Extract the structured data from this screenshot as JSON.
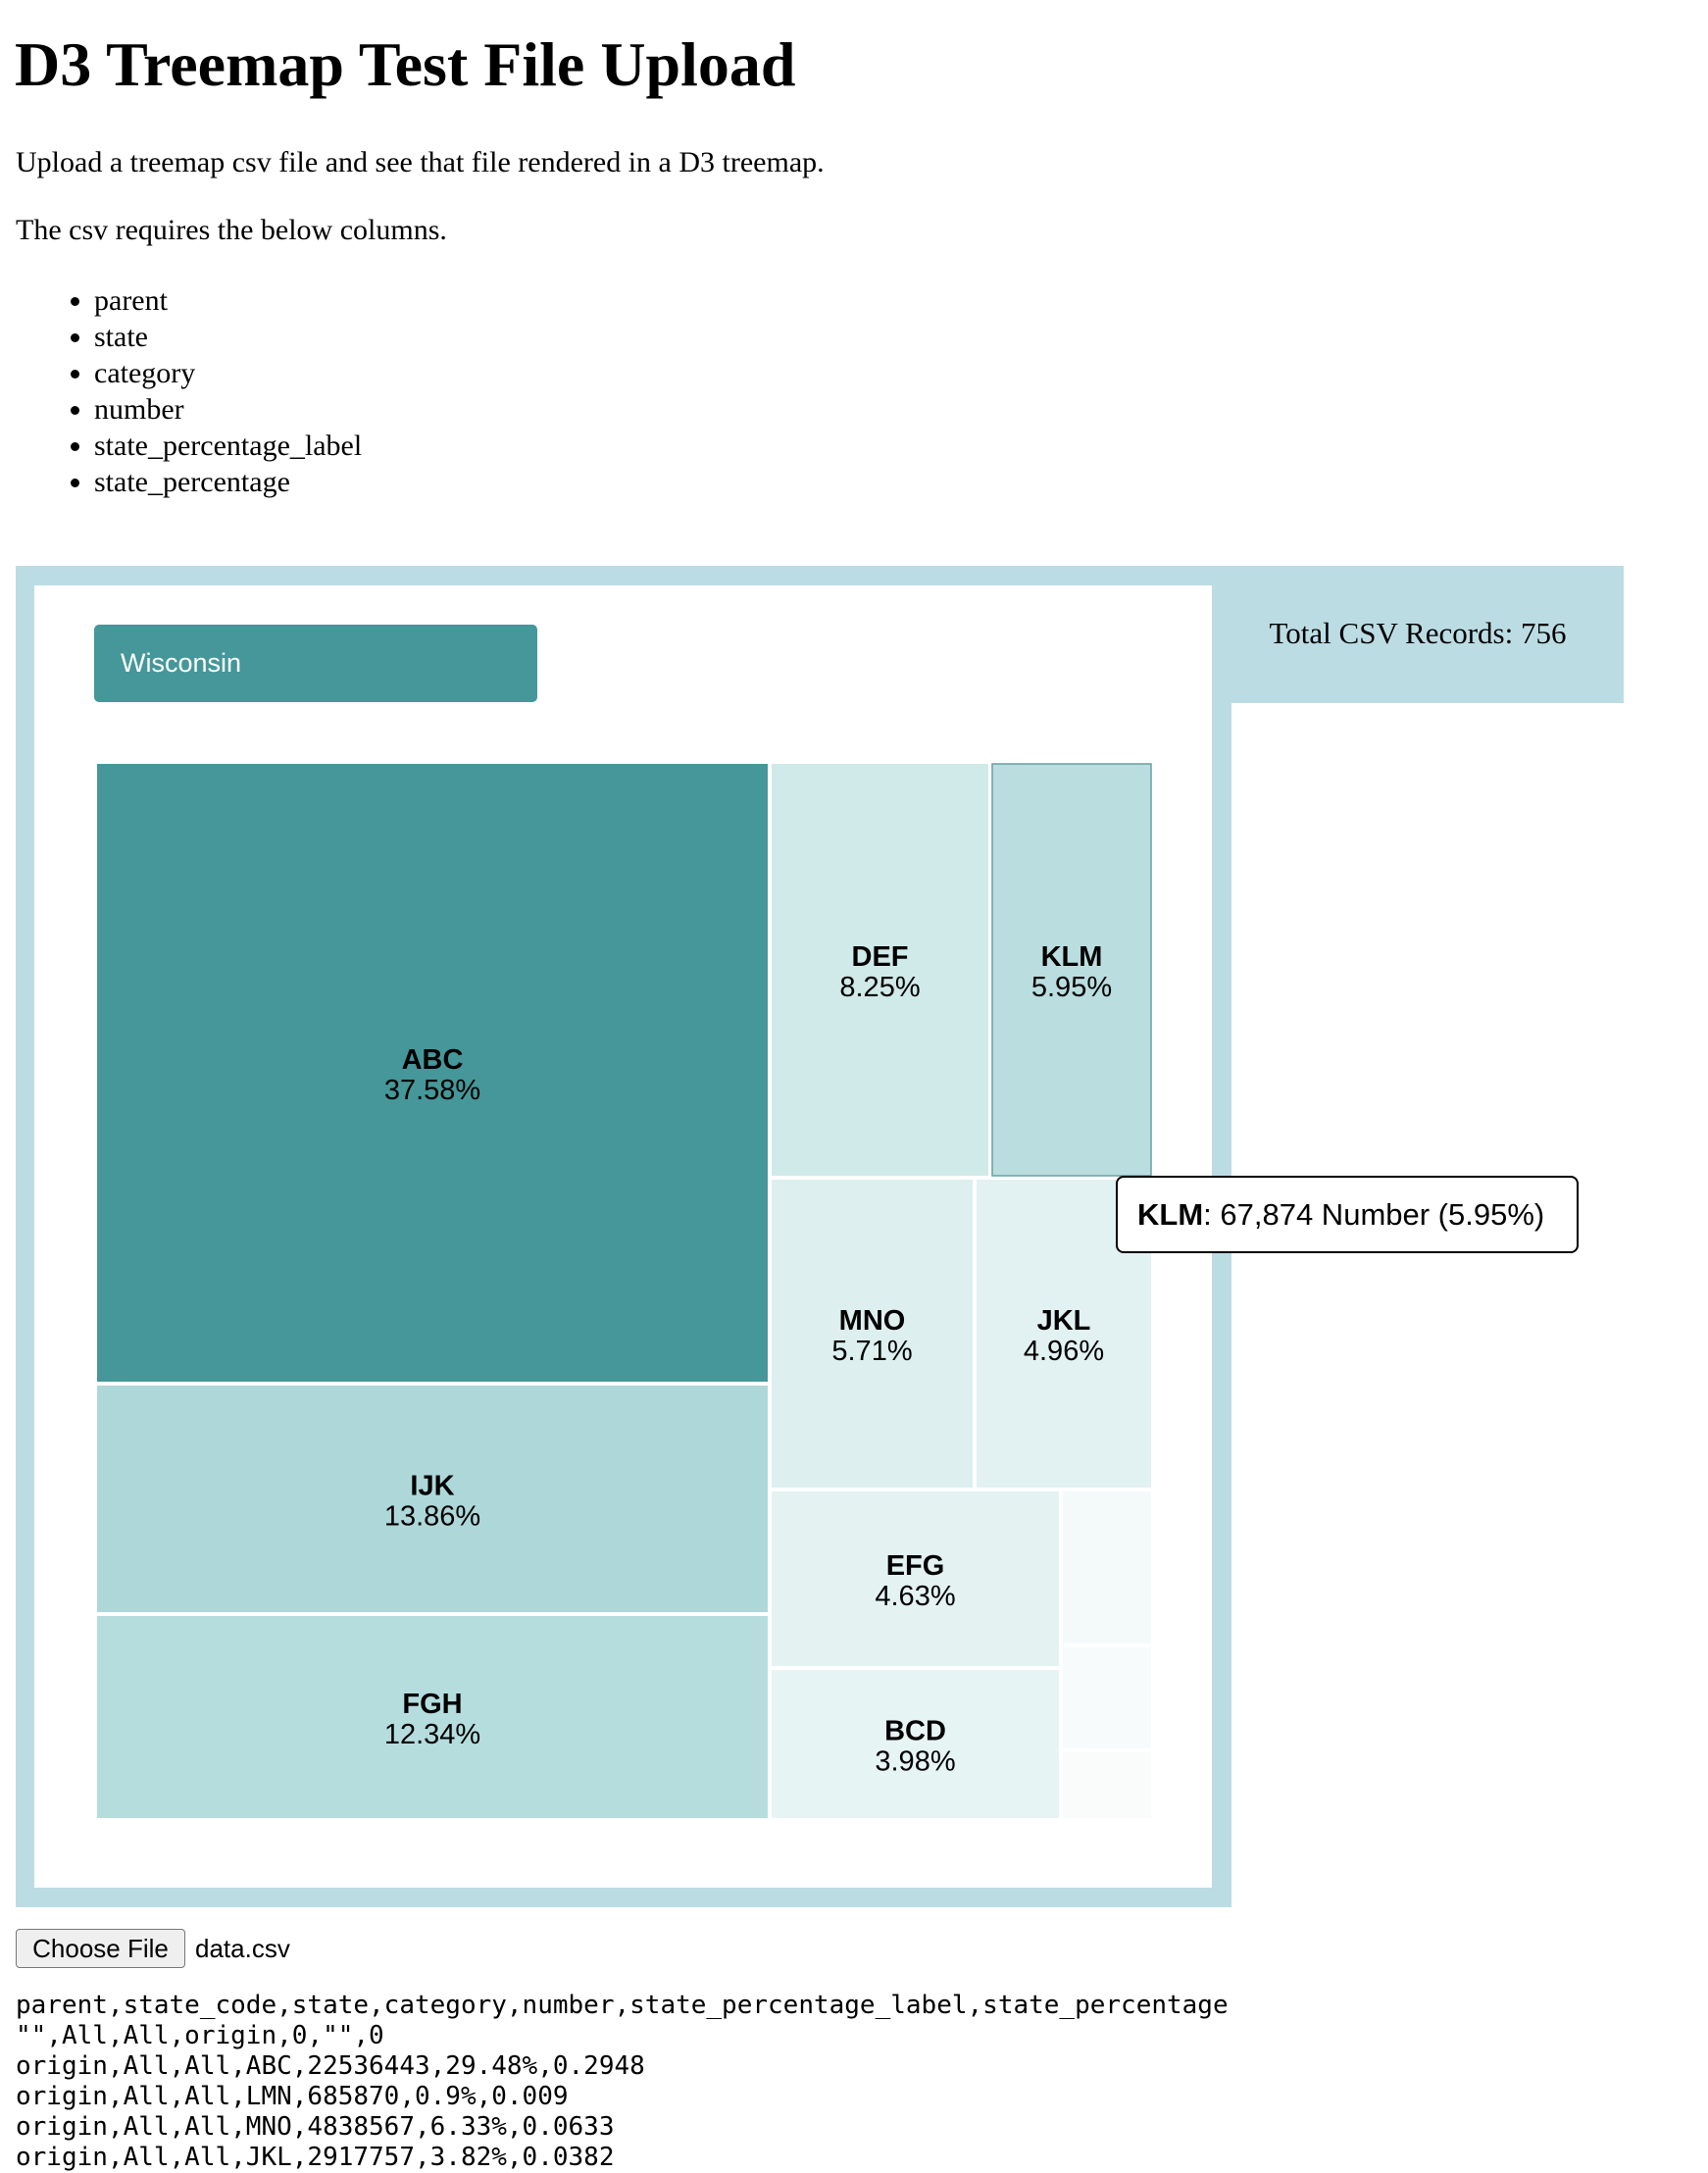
{
  "page": {
    "title": "D3 Treemap Test File Upload",
    "intro": "Upload a treemap csv file and see that file rendered in a D3 treemap.",
    "requirement": "The csv requires the below columns.",
    "columns": [
      "parent",
      "state",
      "category",
      "number",
      "state_percentage_label",
      "state_percentage"
    ]
  },
  "records": {
    "label": "Total CSV Records: 756"
  },
  "state_button": {
    "label": "Wisconsin"
  },
  "colors": {
    "frame": "#bcdce4",
    "accent": "#459799",
    "tooltip_border": "#000000"
  },
  "chart_data": {
    "type": "treemap",
    "unit": "percent of state",
    "tiles": [
      {
        "name": "ABC",
        "label": "37.58%",
        "value": 37.58,
        "color": "#459799"
      },
      {
        "name": "IJK",
        "label": "13.86%",
        "value": 13.86,
        "color": "#aed7d9"
      },
      {
        "name": "FGH",
        "label": "12.34%",
        "value": 12.34,
        "color": "#b5ddde"
      },
      {
        "name": "DEF",
        "label": "8.25%",
        "value": 8.25,
        "color": "#d0e9e9"
      },
      {
        "name": "KLM",
        "label": "5.95%",
        "value": 5.95,
        "color": "#badddf"
      },
      {
        "name": "MNO",
        "label": "5.71%",
        "value": 5.71,
        "color": "#ddefef"
      },
      {
        "name": "JKL",
        "label": "4.96%",
        "value": 4.96,
        "color": "#e2f1f1"
      },
      {
        "name": "EFG",
        "label": "4.63%",
        "value": 4.63,
        "color": "#e4f2f2"
      },
      {
        "name": "BCD",
        "label": "3.98%",
        "value": 3.98,
        "color": "#e7f4f4"
      }
    ],
    "minor_tile_colors": [
      "#f4fafa",
      "#f7fbfb",
      "#fafcfc"
    ],
    "hovered": "KLM"
  },
  "tooltip": {
    "name": "KLM",
    "text": ": 67,874 Number (5.95%)"
  },
  "file_input": {
    "button_label": "Choose File",
    "file_name": "data.csv"
  },
  "csv_preview": {
    "lines": [
      "parent,state_code,state,category,number,state_percentage_label,state_percentage",
      "\"\",All,All,origin,0,\"\",0",
      "origin,All,All,ABC,22536443,29.48%,0.2948",
      "origin,All,All,LMN,685870,0.9%,0.009",
      "origin,All,All,MNO,4838567,6.33%,0.0633",
      "origin,All,All,JKL,2917757,3.82%,0.0382"
    ]
  }
}
